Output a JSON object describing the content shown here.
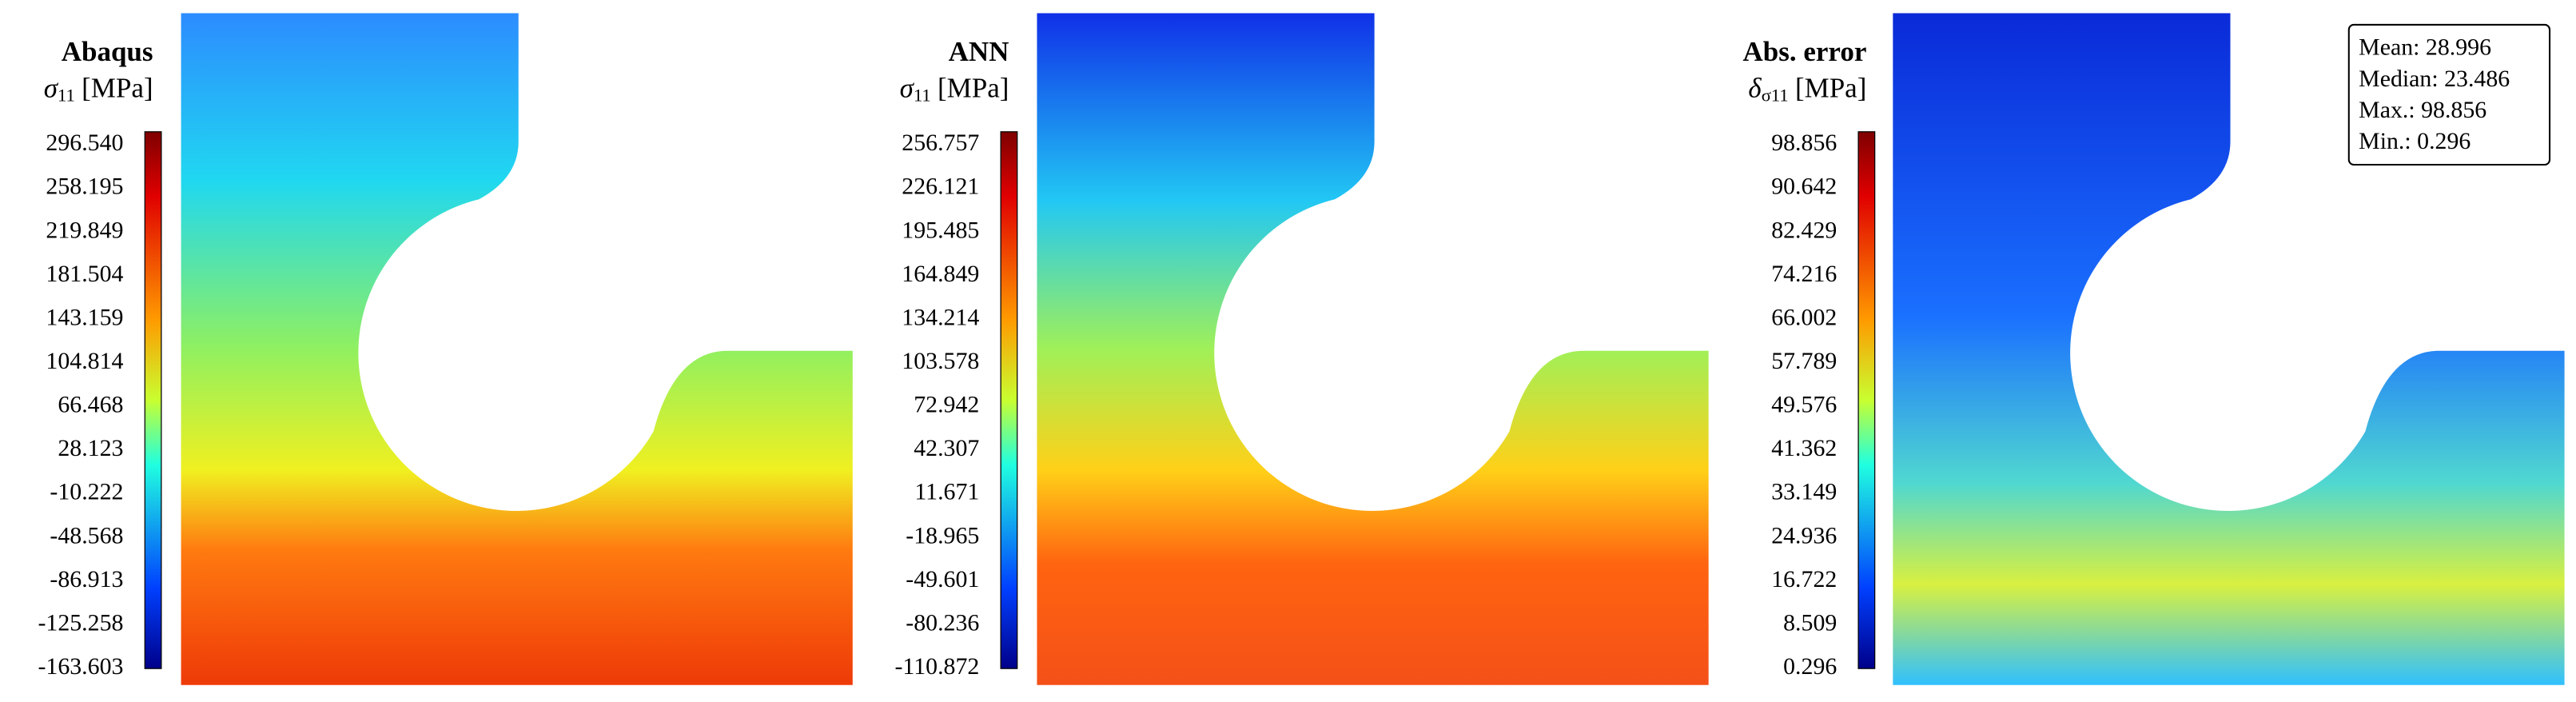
{
  "panels": [
    {
      "title": "Abaqus",
      "symbol": "σ",
      "subscript": "11",
      "unit": "[MPa]",
      "colorbar": [
        "296.540",
        "258.195",
        "219.849",
        "181.504",
        "143.159",
        "104.814",
        "66.468",
        "28.123",
        "-10.222",
        "-48.568",
        "-86.913",
        "-125.258",
        "-163.603"
      ]
    },
    {
      "title": "ANN",
      "symbol": "σ",
      "subscript": "11",
      "unit": "[MPa]",
      "colorbar": [
        "256.757",
        "226.121",
        "195.485",
        "164.849",
        "134.214",
        "103.578",
        "72.942",
        "42.307",
        "11.671",
        "-18.965",
        "-49.601",
        "-80.236",
        "-110.872"
      ]
    },
    {
      "title": "Abs. error",
      "symbol": "δ",
      "subscript": "σ11",
      "unit": "[MPa]",
      "colorbar": [
        "98.856",
        "90.642",
        "82.429",
        "74.216",
        "66.002",
        "57.789",
        "49.576",
        "41.362",
        "33.149",
        "24.936",
        "16.722",
        "8.509",
        "0.296"
      ]
    }
  ],
  "stats": [
    "Mean: 28.996",
    "Median: 23.486",
    "Max.: 98.856",
    "Min.: 0.296"
  ]
}
